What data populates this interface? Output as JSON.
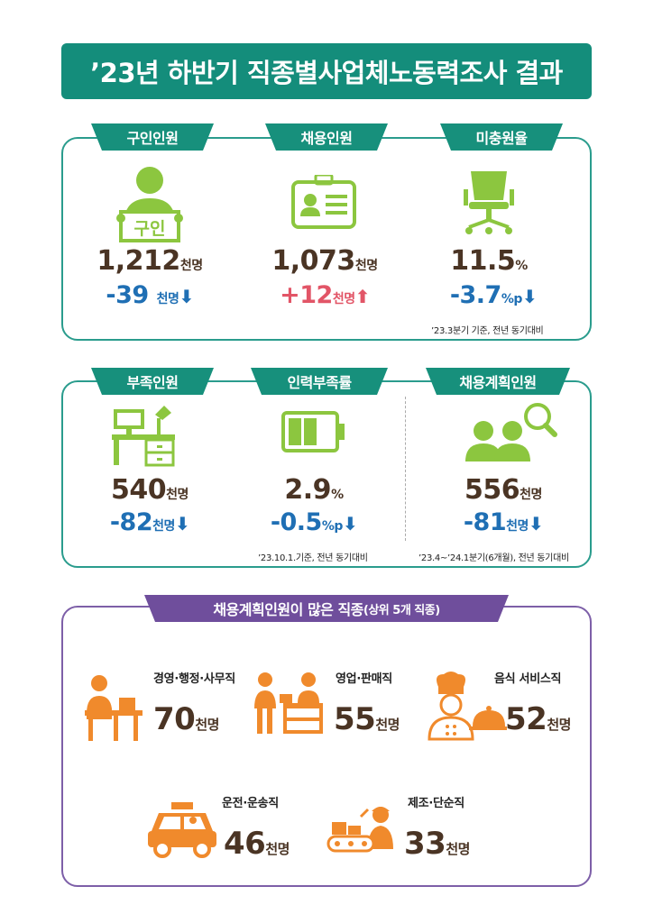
{
  "title": "’23년 하반기 직종별사업체노동력조사 결과",
  "section1": {
    "items": [
      {
        "tab": "구인인원",
        "icon_text": "구인",
        "value": "1,212",
        "unit": "천명",
        "change": "-39",
        "change_unit": "천명",
        "direction": "down"
      },
      {
        "tab": "채용인원",
        "value": "1,073",
        "unit": "천명",
        "change": "+12",
        "change_unit": "천명",
        "direction": "up"
      },
      {
        "tab": "미충원율",
        "value": "11.5",
        "unit": "%",
        "change": "-3.7",
        "change_unit": "%p",
        "direction": "down"
      }
    ],
    "note": "’23.3분기 기준, 전년 동기대비"
  },
  "section2": {
    "items": [
      {
        "tab": "부족인원",
        "value": "540",
        "unit": "천명",
        "change": "-82",
        "change_unit": "천명",
        "direction": "down"
      },
      {
        "tab": "인력부족률",
        "value": "2.9",
        "unit": "%",
        "change": "-0.5",
        "change_unit": "%p",
        "direction": "down"
      },
      {
        "tab": "채용계획인원",
        "value": "556",
        "unit": "천명",
        "change": "-81",
        "change_unit": "천명",
        "direction": "down"
      }
    ],
    "note_left": "’23.10.1.기준, 전년 동기대비",
    "note_right": "’23.4~’24.1분기(6개월), 전년 동기대비"
  },
  "section3": {
    "tab": "채용계획인원이 많은 직종",
    "tab_suffix": "(상위 5개 직종)",
    "jobs": [
      {
        "label": "경영·행정·사무직",
        "value": "70",
        "unit": "천명"
      },
      {
        "label": "영업·판매직",
        "value": "55",
        "unit": "천명"
      },
      {
        "label": "음식 서비스직",
        "value": "52",
        "unit": "천명"
      },
      {
        "label": "운전·운송직",
        "value": "46",
        "unit": "천명"
      },
      {
        "label": "제조·단순직",
        "value": "33",
        "unit": "천명"
      }
    ]
  },
  "arrows": {
    "down": "⬇",
    "up": "⬆"
  },
  "colors": {
    "teal": "#148d7b",
    "purple": "#6f4e9c",
    "green_icon": "#8cc63f",
    "orange_icon": "#f08a2c",
    "down": "#1f6fb4",
    "up": "#e25567",
    "value": "#4a3424"
  }
}
